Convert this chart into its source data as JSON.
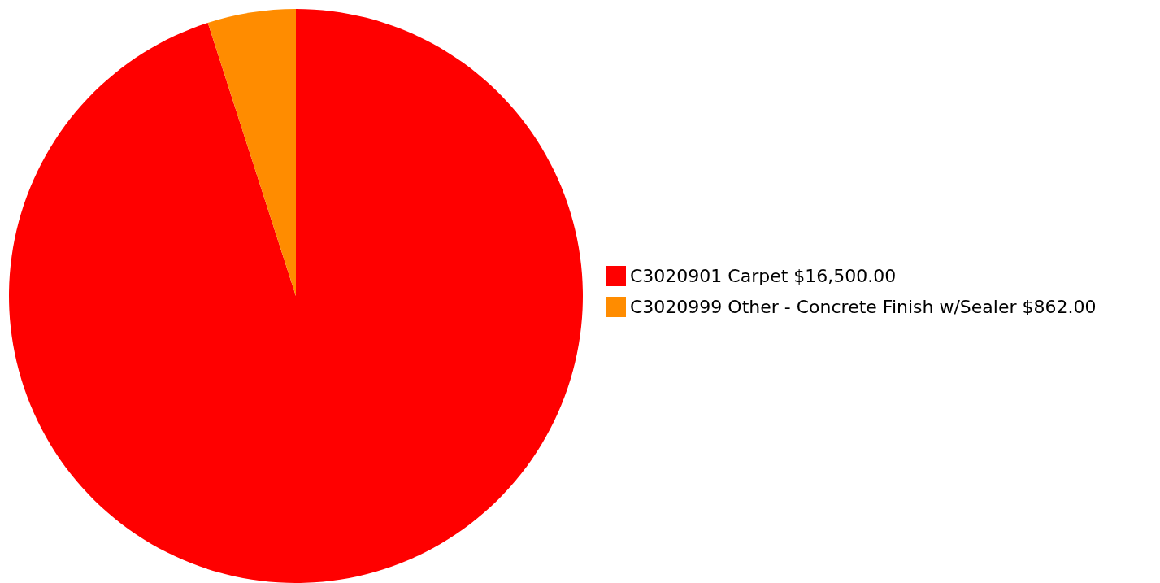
{
  "chart_data": {
    "type": "pie",
    "categories": [
      "C3020901 Carpet",
      "C3020999 Other - Concrete Finish w/Sealer"
    ],
    "values": [
      16500,
      862
    ],
    "value_labels": [
      "$16,500.00",
      "$862.00"
    ],
    "colors": [
      "#ff0000",
      "#ff8c00"
    ],
    "legend": "right"
  }
}
